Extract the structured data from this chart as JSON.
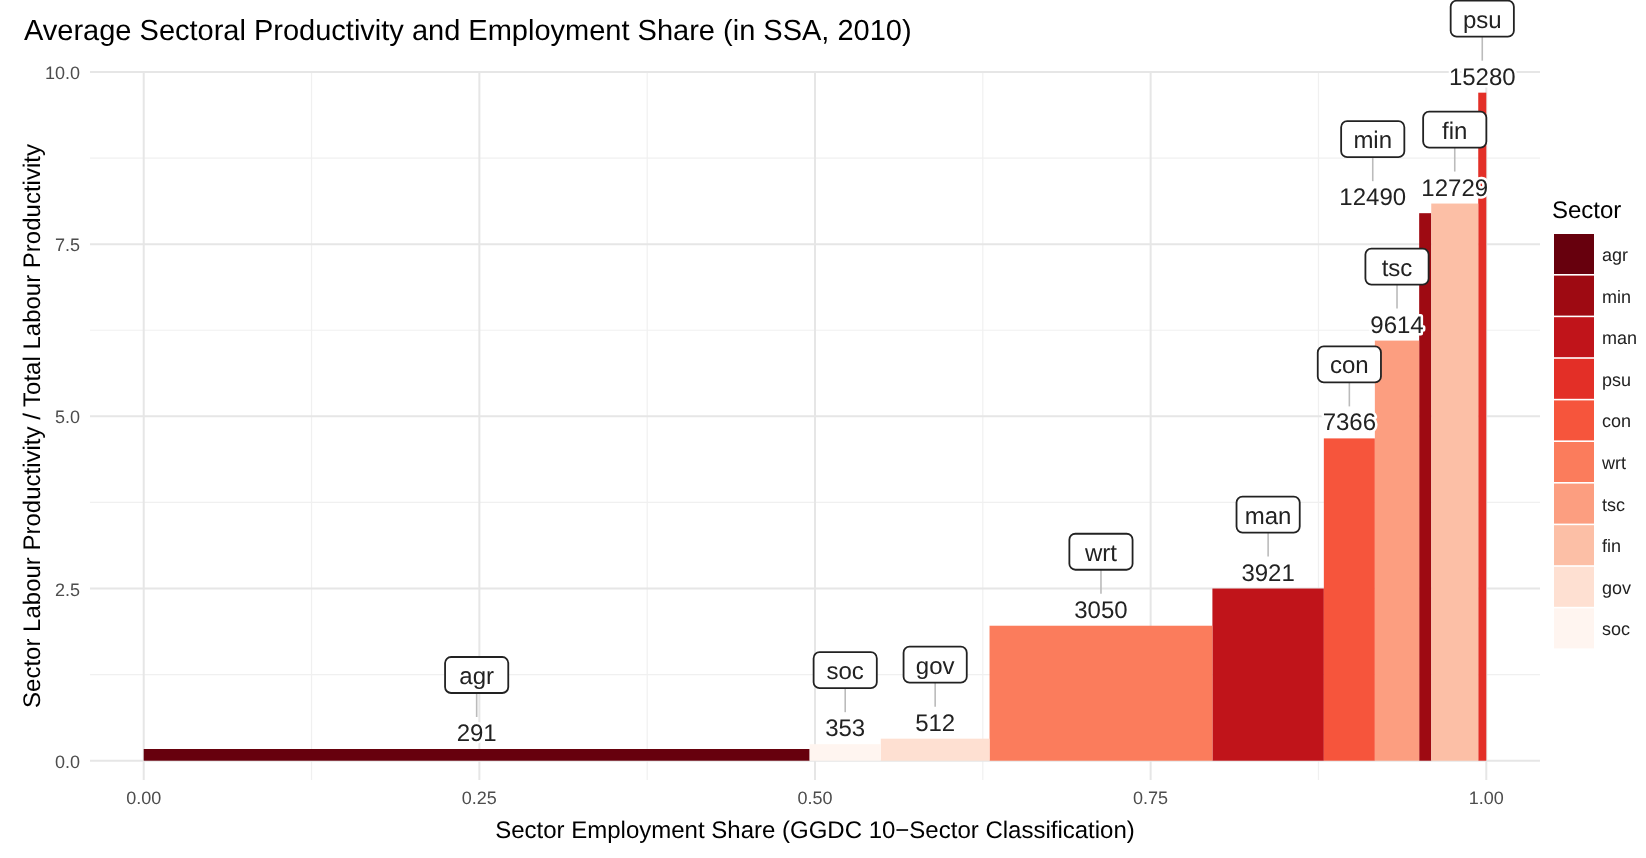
{
  "chart_data": {
    "type": "histogram",
    "title": "Average Sectoral Productivity and Employment Share (in SSA, 2010)",
    "xlabel": "Sector Employment Share (GGDC 10−Sector Classification)",
    "ylabel": "Sector Labour Productivity / Total Labour Productivity",
    "legend_title": "Sector",
    "legend": "right",
    "grid": true,
    "xlim": [
      -0.04,
      1.04
    ],
    "ylim": [
      -0.28,
      10.0
    ],
    "xticks": [
      {
        "value": 0,
        "label": "0.00"
      },
      {
        "value": 0.25,
        "label": "0.25"
      },
      {
        "value": 0.5,
        "label": "0.50"
      },
      {
        "value": 0.75,
        "label": "0.75"
      },
      {
        "value": 1,
        "label": "1.00"
      }
    ],
    "yticks": [
      {
        "value": 0,
        "label": "0.0"
      },
      2.5,
      {
        "value": 5,
        "label": "5.0"
      },
      7.5,
      {
        "value": 10,
        "label": "10.0"
      }
    ],
    "bins": [
      0,
      0.496,
      0.549,
      0.63,
      0.796,
      0.879,
      0.917,
      0.95,
      0.959,
      0.994,
      1.0
    ],
    "series": [
      {
        "name": "agr",
        "color": "#67000d",
        "values": [
          0.17,
          null,
          null,
          null,
          null,
          null,
          null,
          null,
          null,
          null
        ]
      },
      {
        "name": "min",
        "color": "#9e0a12",
        "values": [
          null,
          null,
          null,
          null,
          null,
          null,
          null,
          7.95,
          null,
          null
        ]
      },
      {
        "name": "man",
        "color": "#c0141a",
        "values": [
          null,
          null,
          null,
          null,
          2.5,
          null,
          null,
          null,
          null,
          null
        ]
      },
      {
        "name": "psu",
        "color": "#e32f27",
        "values": [
          null,
          null,
          null,
          null,
          null,
          null,
          null,
          null,
          null,
          9.7
        ]
      },
      {
        "name": "con",
        "color": "#f6553c",
        "values": [
          null,
          null,
          null,
          null,
          null,
          4.68,
          null,
          null,
          null,
          null
        ]
      },
      {
        "name": "wrt",
        "color": "#fb7c5c",
        "values": [
          null,
          null,
          null,
          1.96,
          null,
          null,
          null,
          null,
          null,
          null
        ]
      },
      {
        "name": "tsc",
        "color": "#fc9e80",
        "values": [
          null,
          null,
          null,
          null,
          null,
          null,
          6.1,
          null,
          null,
          null
        ]
      },
      {
        "name": "fin",
        "color": "#fcbfa6",
        "values": [
          null,
          null,
          null,
          null,
          null,
          null,
          null,
          null,
          8.09,
          null
        ]
      },
      {
        "name": "gov",
        "color": "#fee0d2",
        "values": [
          null,
          null,
          0.32,
          null,
          null,
          null,
          null,
          null,
          null,
          null
        ]
      },
      {
        "name": "soc",
        "color": "#fff5f0",
        "values": [
          null,
          0.24,
          null,
          null,
          null,
          null,
          null,
          null,
          null,
          null
        ]
      }
    ],
    "annotations": [
      {
        "text": "291",
        "x": 0.248,
        "y": 0.17
      },
      {
        "text": "353",
        "x": 0.5225,
        "y": 0.24
      },
      {
        "text": "512",
        "x": 0.5895,
        "y": 0.32
      },
      {
        "text": "3050",
        "x": 0.713,
        "y": 1.96
      },
      {
        "text": "3921",
        "x": 0.8375,
        "y": 2.5
      },
      {
        "text": "7366",
        "x": 0.898,
        "y": 4.68
      },
      {
        "text": "9614",
        "x": 0.9335,
        "y": 6.1
      },
      {
        "text": "12490",
        "x": 0.9545,
        "y": 7.95
      },
      {
        "text": "12729",
        "x": 0.9765,
        "y": 8.09
      },
      {
        "text": "15280",
        "x": 0.997,
        "y": 9.7
      }
    ]
  }
}
